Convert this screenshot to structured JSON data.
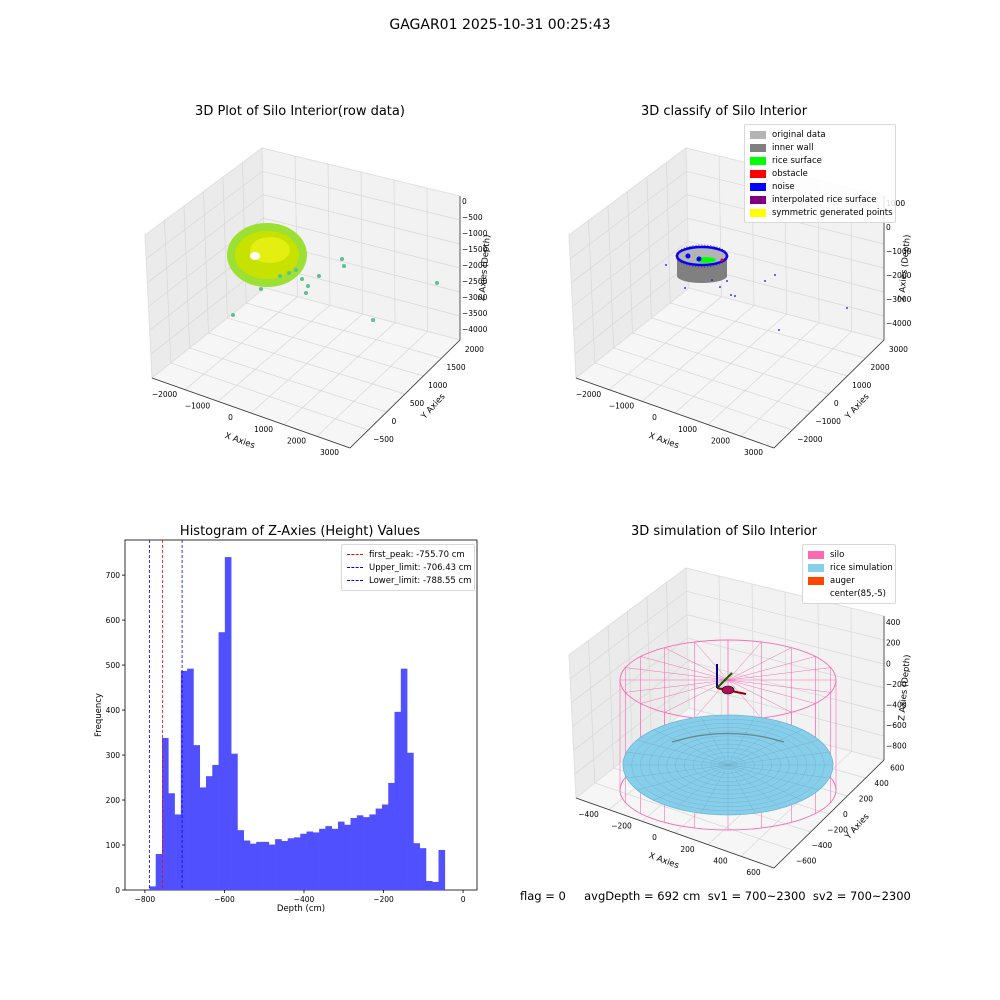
{
  "suptitle": "GAGAR01 2025-10-31 00:25:43",
  "footer_text": "flag = 0     avgDepth = 692 cm  sv1 = 700~2300  sv2 = 700~2300",
  "chart_data": [
    {
      "type": "scatter",
      "title": "3D Plot of Silo Interior(row data)",
      "xlabel": "X Axies",
      "ylabel": "Y Axies",
      "zlabel": "Z Axies (Depth)",
      "x_ticks": [
        "−2000",
        "−1000",
        "0",
        "1000",
        "2000",
        "3000"
      ],
      "y_ticks": [
        "−500",
        "0",
        "500",
        "1000",
        "1500",
        "2000"
      ],
      "z_ticks": [
        "0",
        "−500",
        "−1000",
        "−1500",
        "−2000",
        "−2500",
        "−3000",
        "−3500",
        "−4000"
      ],
      "colors": {
        "surface": "#c8e200",
        "ring": "#9be032",
        "outliers": "#5fbf8f"
      }
    },
    {
      "type": "scatter",
      "title": "3D classify of Silo Interior",
      "xlabel": "X Axies",
      "ylabel": "Y Axies",
      "zlabel": "Z Axies (Depth)",
      "x_ticks": [
        "−2000",
        "−1000",
        "0",
        "1000",
        "2000",
        "3000"
      ],
      "y_ticks": [
        "−2000",
        "−1000",
        "0",
        "1000",
        "2000",
        "3000"
      ],
      "z_ticks": [
        "1000",
        "0",
        "−1000",
        "−2000",
        "−3000",
        "−4000"
      ],
      "legend": [
        {
          "label": "original data",
          "color": "#b4b4b4"
        },
        {
          "label": "inner wall",
          "color": "#808080"
        },
        {
          "label": "rice surface",
          "color": "#00ff00"
        },
        {
          "label": "obstacle",
          "color": "#ff0000"
        },
        {
          "label": "noise",
          "color": "#0000ff"
        },
        {
          "label": "interpolated rice surface",
          "color": "#800080"
        },
        {
          "label": "symmetric generated points",
          "color": "#ffff00"
        }
      ]
    },
    {
      "type": "bar",
      "title": "Histogram of Z-Axies (Height) Values",
      "xlabel": "Depth (cm)",
      "ylabel": "Frequency",
      "xlim": [
        -850,
        35
      ],
      "ylim": [
        0,
        778
      ],
      "x_ticks": [
        -800,
        -600,
        -400,
        -200,
        0
      ],
      "y_ticks": [
        0,
        100,
        200,
        300,
        400,
        500,
        600,
        700
      ],
      "bin_start": -788.55,
      "bin_width": 15.8,
      "values": [
        8,
        80,
        338,
        215,
        168,
        487,
        492,
        322,
        228,
        253,
        278,
        573,
        740,
        303,
        133,
        110,
        103,
        107,
        107,
        101,
        113,
        109,
        115,
        117,
        125,
        130,
        128,
        136,
        142,
        136,
        152,
        145,
        160,
        166,
        162,
        168,
        181,
        190,
        238,
        396,
        492,
        305,
        104,
        93,
        20,
        18,
        89
      ],
      "bar_color": "#5050ff",
      "lines": [
        {
          "label": "first_peak: -755.70 cm",
          "x": -755.7,
          "color": "#ff0000"
        },
        {
          "label": "Upper_limit: -706.43 cm",
          "x": -706.43,
          "color": "#0000ff"
        },
        {
          "label": "Lower_limit: -788.55 cm",
          "x": -788.55,
          "color": "#0000ff"
        }
      ]
    },
    {
      "type": "scatter",
      "title": "3D simulation of Silo Interior",
      "xlabel": "X Axies",
      "ylabel": "Y Axies",
      "zlabel": "Z Axies (Depth)",
      "x_ticks": [
        "−400",
        "−200",
        "0",
        "200",
        "400",
        "600"
      ],
      "y_ticks": [
        "−600",
        "−400",
        "−200",
        "0",
        "200",
        "400",
        "600"
      ],
      "z_ticks": [
        "400",
        "200",
        "0",
        "−200",
        "−400",
        "−600",
        "−800"
      ],
      "legend": [
        {
          "label": "silo",
          "color": "#ff69b4"
        },
        {
          "label": "rice simulation",
          "color": "#87ceeb"
        },
        {
          "label": "auger",
          "color": "#ff4500"
        },
        {
          "label": "center(85,-5)",
          "color": ""
        }
      ]
    }
  ]
}
